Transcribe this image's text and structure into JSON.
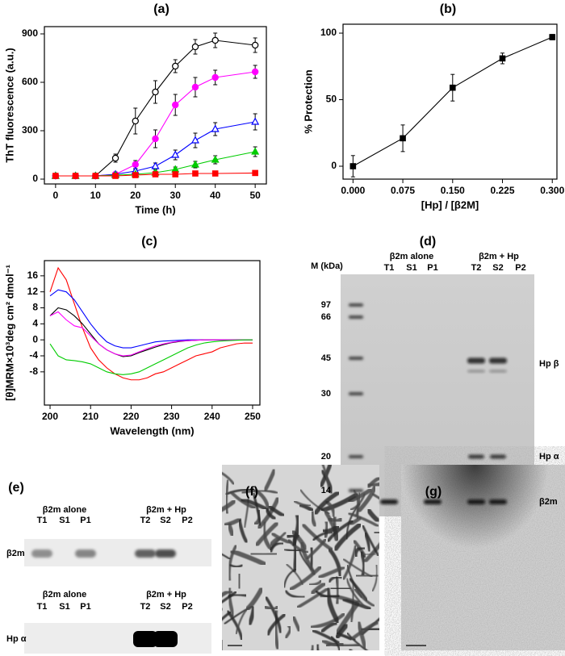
{
  "chart_data": [
    {
      "type": "line",
      "panel_label": "(a)",
      "xlabel": "Time (h)",
      "ylabel": "ThT fluorescence (a.u.)",
      "xlim": [
        -2.8,
        52.8
      ],
      "ylim": [
        -30,
        945
      ],
      "xticks": [
        0,
        10,
        20,
        30,
        40,
        50
      ],
      "yticks": [
        0,
        300,
        600,
        900
      ],
      "x": [
        0,
        5,
        10,
        15,
        20,
        25,
        30,
        35,
        40,
        50
      ],
      "series": [
        {
          "color": "#000000",
          "marker": "open-circle",
          "values": [
            20,
            20,
            20,
            130,
            360,
            540,
            700,
            820,
            860,
            830
          ],
          "errors": [
            10,
            8,
            8,
            25,
            80,
            70,
            40,
            45,
            45,
            45
          ]
        },
        {
          "color": "#ff00ff",
          "marker": "filled-circle",
          "values": [
            20,
            20,
            20,
            30,
            90,
            250,
            460,
            570,
            630,
            665
          ],
          "errors": [
            5,
            5,
            5,
            10,
            25,
            55,
            65,
            60,
            45,
            40
          ]
        },
        {
          "color": "#0000ff",
          "marker": "open-triangle",
          "values": [
            20,
            20,
            20,
            30,
            50,
            80,
            150,
            240,
            310,
            355
          ],
          "errors": [
            5,
            5,
            5,
            8,
            12,
            20,
            30,
            45,
            40,
            50
          ]
        },
        {
          "color": "#00cc00",
          "marker": "filled-triangle",
          "values": [
            20,
            20,
            20,
            25,
            30,
            40,
            60,
            90,
            120,
            170
          ],
          "errors": [
            5,
            5,
            5,
            5,
            8,
            10,
            15,
            20,
            25,
            30
          ]
        },
        {
          "color": "#ff0000",
          "marker": "filled-square",
          "values": [
            20,
            20,
            20,
            20,
            25,
            30,
            30,
            35,
            35,
            38
          ],
          "errors": [
            3,
            3,
            3,
            3,
            3,
            4,
            4,
            4,
            4,
            4
          ]
        }
      ]
    },
    {
      "type": "line",
      "panel_label": "(b)",
      "xlabel": "[Hp] / [β2M]",
      "ylabel": "% Protection",
      "xlim": [
        -0.015,
        0.307
      ],
      "ylim": [
        -9.7,
        106.7
      ],
      "xticks": [
        {
          "value": 0,
          "label": "0.000"
        },
        {
          "value": 0.075,
          "label": "0.075"
        },
        {
          "value": 0.15,
          "label": "0.150"
        },
        {
          "value": 0.225,
          "label": "0.225"
        },
        {
          "value": 0.3,
          "label": "0.300"
        }
      ],
      "yticks": [
        0,
        50,
        100
      ],
      "x": [
        0,
        0.075,
        0.15,
        0.225,
        0.3
      ],
      "series": [
        {
          "color": "#000000",
          "marker": "filled-square",
          "values": [
            0,
            21,
            59,
            81,
            97
          ],
          "errors": [
            8,
            10,
            10,
            4,
            2
          ]
        }
      ]
    },
    {
      "type": "line",
      "panel_label": "(c)",
      "xlabel": "Wavelength (nm)",
      "ylabel": "[θ]MRM×10³deg cm² dmol⁻¹",
      "xlim": [
        198.6,
        251.8
      ],
      "ylim": [
        -16.3,
        19.8
      ],
      "xticks": [
        200,
        210,
        220,
        230,
        240,
        250
      ],
      "yticks": [
        -8,
        -4,
        0,
        4,
        8,
        12,
        16
      ],
      "x": [
        200,
        202,
        204,
        206,
        208,
        210,
        212,
        214,
        216,
        218,
        220,
        222,
        224,
        226,
        228,
        230,
        232,
        234,
        236,
        238,
        240,
        242,
        244,
        246,
        248,
        250
      ],
      "series": [
        {
          "color": "#ff0000",
          "values": [
            12,
            18,
            15,
            9,
            3,
            -2,
            -5,
            -7,
            -8.5,
            -9.5,
            -10,
            -10,
            -9.5,
            -8.5,
            -8,
            -7,
            -6,
            -5,
            -4,
            -3.5,
            -3,
            -2,
            -1.5,
            -1,
            -0.8,
            -0.8
          ]
        },
        {
          "color": "#0000ff",
          "values": [
            11,
            12.5,
            12,
            10,
            7,
            4,
            1.5,
            -0.5,
            -1.5,
            -2,
            -2,
            -1.5,
            -1,
            -0.5,
            -0.3,
            -0.2,
            -0.1,
            0,
            0,
            0,
            0,
            0,
            0,
            0,
            0,
            0
          ]
        },
        {
          "color": "#000000",
          "values": [
            6,
            8,
            7.5,
            6,
            4,
            1.5,
            -1,
            -2.5,
            -3.5,
            -4.2,
            -4,
            -3.2,
            -2.5,
            -1.8,
            -1.2,
            -0.7,
            -0.4,
            -0.2,
            -0.1,
            0,
            0,
            0,
            0,
            0,
            0,
            0
          ]
        },
        {
          "color": "#ff00ff",
          "values": [
            6,
            7,
            5,
            3.5,
            3,
            1,
            -1,
            -2.5,
            -3.5,
            -4,
            -3.8,
            -3,
            -2.2,
            -1.5,
            -1,
            -0.6,
            -0.3,
            -0.2,
            -0.1,
            0,
            0,
            0,
            0,
            0,
            0,
            0
          ]
        },
        {
          "color": "#00cc00",
          "values": [
            -1,
            -4,
            -5,
            -5.2,
            -5.5,
            -6,
            -7,
            -8,
            -8.5,
            -8.7,
            -8.5,
            -8,
            -7,
            -6,
            -5,
            -4,
            -3,
            -2,
            -1.3,
            -0.8,
            -0.5,
            -0.3,
            -0.2,
            -0.1,
            0,
            0
          ]
        }
      ]
    }
  ],
  "gel_d": {
    "panel_label": "(d)",
    "marker_header": "M (kDa)",
    "markers": [
      "97",
      "66",
      "45",
      "30",
      "20",
      "14"
    ],
    "groups": [
      "β2m alone",
      "β2m + Hp"
    ],
    "lanes": [
      "T1",
      "S1",
      "P1",
      "T2",
      "S2",
      "P2"
    ],
    "band_labels": [
      "Hp β",
      "Hp α",
      "β2m"
    ]
  },
  "blot_e": {
    "panel_label": "(e)",
    "blots": [
      {
        "label": "β2m",
        "groups": [
          "β2m alone",
          "β2m + Hp"
        ],
        "lanes": [
          "T1",
          "S1",
          "P1",
          "T2",
          "S2",
          "P2"
        ]
      },
      {
        "label": "Hp α",
        "groups": [
          "β2m alone",
          "β2m + Hp"
        ],
        "lanes": [
          "T1",
          "S1",
          "P1",
          "T2",
          "S2",
          "P2"
        ]
      }
    ]
  },
  "micrograph_f": {
    "panel_label": "(f)"
  },
  "micrograph_g": {
    "panel_label": "(g)"
  }
}
